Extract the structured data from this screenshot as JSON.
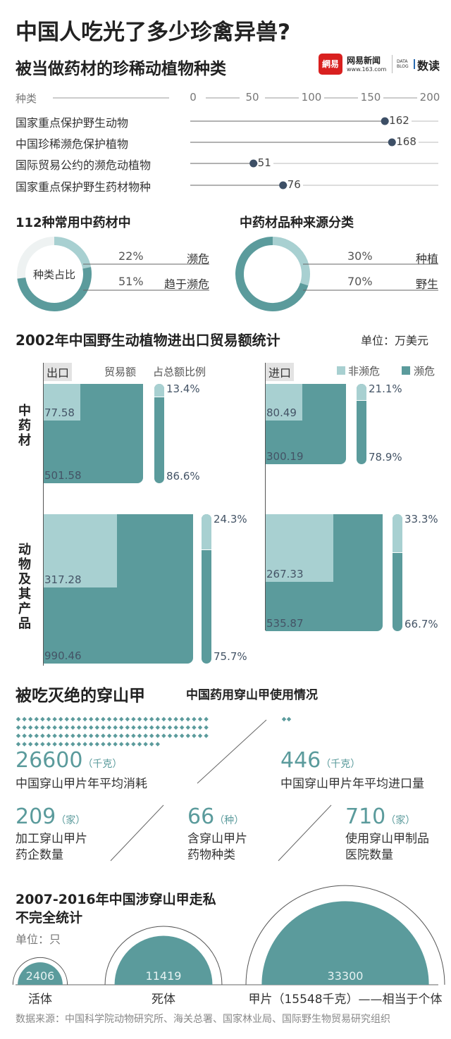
{
  "title": "中国人吃光了多少珍禽异兽?",
  "logo": {
    "mark": "網易",
    "brand": "网易新闻",
    "url": "www.163.com",
    "blog": "DATA BLOG",
    "column": "数读"
  },
  "colors": {
    "dark": "#5b9b9c",
    "light": "#a8d0d1",
    "dot": "#3d4f66",
    "track": "#eef2f2"
  },
  "chart_data": [
    {
      "type": "scatter",
      "title": "被当做药材的珍稀动植物种类",
      "ylabel": "种类",
      "xlim": [
        0,
        200
      ],
      "ticks": [
        "0",
        "50",
        "100",
        "150",
        "200"
      ],
      "categories": [
        "国家重点保护野生动物",
        "中国珍稀濒危保护植物",
        "国际贸易公约的濒危动植物",
        "国家重点保护野生药材物种"
      ],
      "values": [
        162,
        168,
        51,
        76
      ],
      "labels": [
        "162",
        "168",
        "51",
        "76"
      ]
    },
    {
      "type": "pie",
      "title": "112种常用中药材中",
      "center_label": "种类占比",
      "slices": [
        {
          "label": "濒危",
          "value": 22,
          "text": "22%"
        },
        {
          "label": "趋于濒危",
          "value": 51,
          "text": "51%"
        }
      ]
    },
    {
      "type": "pie",
      "title": "中药材品种来源分类",
      "slices": [
        {
          "label": "种植",
          "value": 30,
          "text": "30%"
        },
        {
          "label": "野生",
          "value": 70,
          "text": "70%"
        }
      ]
    },
    {
      "type": "table",
      "title": "2002年中国野生动植物进出口贸易额统计",
      "unit": "单位：万美元",
      "export_label": "出口",
      "import_label": "进口",
      "col_amount": "贸易额",
      "col_share": "占总额比例",
      "legend": [
        "非濒危",
        "濒危"
      ],
      "rows": [
        "中药材",
        "动物及其产品"
      ],
      "export": [
        {
          "non_endangered": 77.58,
          "endangered": 501.58,
          "ne_text": "77.58",
          "e_text": "501.58",
          "ne_pct": "13.4%",
          "e_pct": "86.6%",
          "ne_share": 13.4
        },
        {
          "non_endangered": 317.28,
          "endangered": 990.46,
          "ne_text": "317.28",
          "e_text": "990.46",
          "ne_pct": "24.3%",
          "e_pct": "75.7%",
          "ne_share": 24.3
        }
      ],
      "import": [
        {
          "non_endangered": 80.49,
          "endangered": 300.19,
          "ne_text": "80.49",
          "e_text": "300.19",
          "ne_pct": "21.1%",
          "e_pct": "78.9%",
          "ne_share": 21.1
        },
        {
          "non_endangered": 267.33,
          "endangered": 535.87,
          "ne_text": "267.33",
          "e_text": "535.87",
          "ne_pct": "33.3%",
          "e_pct": "66.7%",
          "ne_share": 33.3
        }
      ]
    },
    {
      "type": "bar",
      "title": "2007-2016年中国涉穿山甲走私",
      "subtitle": "不完全统计",
      "unit": "单位：只",
      "categories": [
        "活体",
        "死体",
        "甲片（15548千克）——相当于个体"
      ],
      "values": [
        2406,
        11419,
        33300
      ],
      "labels": [
        "2406",
        "11419",
        "33300"
      ]
    }
  ],
  "pangolin": {
    "title": "被吃灭绝的穿山甲",
    "subtitle": "中国药用穿山甲使用情况",
    "consumption": {
      "value": "26600",
      "unit": "（千克）",
      "label": "中国穿山甲片年平均消耗",
      "diamonds": 120
    },
    "imports": {
      "value": "446",
      "unit": "（千克）",
      "label": "中国穿山甲片年平均进口量",
      "diamonds": 2
    },
    "stats": [
      {
        "value": "209",
        "unit": "（家）",
        "l1": "加工穿山甲片",
        "l2": "药企数量"
      },
      {
        "value": "66",
        "unit": "（种）",
        "l1": "含穿山甲片",
        "l2": "药物种类"
      },
      {
        "value": "710",
        "unit": "（家）",
        "l1": "使用穿山甲制品",
        "l2": "医院数量"
      }
    ]
  },
  "source": "数据来源：中国科学院动物研究所、海关总署、国家林业局、国际野生物贸易研究组织"
}
